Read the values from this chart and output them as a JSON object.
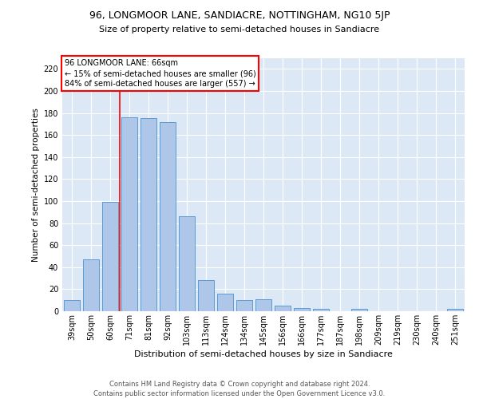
{
  "title1": "96, LONGMOOR LANE, SANDIACRE, NOTTINGHAM, NG10 5JP",
  "title2": "Size of property relative to semi-detached houses in Sandiacre",
  "xlabel": "Distribution of semi-detached houses by size in Sandiacre",
  "ylabel": "Number of semi-detached properties",
  "categories": [
    "39sqm",
    "50sqm",
    "60sqm",
    "71sqm",
    "81sqm",
    "92sqm",
    "103sqm",
    "113sqm",
    "124sqm",
    "134sqm",
    "145sqm",
    "156sqm",
    "166sqm",
    "177sqm",
    "187sqm",
    "198sqm",
    "209sqm",
    "219sqm",
    "230sqm",
    "240sqm",
    "251sqm"
  ],
  "values": [
    10,
    47,
    99,
    176,
    175,
    172,
    86,
    28,
    16,
    10,
    11,
    5,
    3,
    2,
    0,
    2,
    0,
    0,
    0,
    0,
    2
  ],
  "bar_color": "#aec6e8",
  "bar_edge_color": "#5b9bd5",
  "red_line_x": 2.5,
  "annotation_text": "96 LONGMOOR LANE: 66sqm\n← 15% of semi-detached houses are smaller (96)\n84% of semi-detached houses are larger (557) →",
  "annotation_box_color": "white",
  "annotation_box_edge": "red",
  "footer": "Contains HM Land Registry data © Crown copyright and database right 2024.\nContains public sector information licensed under the Open Government Licence v3.0.",
  "ylim": [
    0,
    230
  ],
  "background_color": "#dce8f5",
  "grid_color": "white",
  "title1_fontsize": 9,
  "title2_fontsize": 8,
  "ylabel_fontsize": 7.5,
  "xlabel_fontsize": 8,
  "tick_fontsize": 7,
  "annotation_fontsize": 7,
  "footer_fontsize": 6
}
